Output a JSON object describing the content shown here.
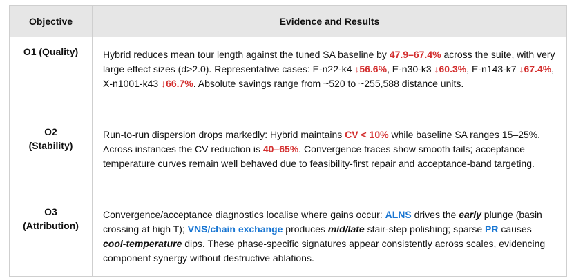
{
  "table": {
    "headers": {
      "objective": "Objective",
      "evidence": "Evidence and Results"
    },
    "rows": [
      {
        "objective": [
          "O1 (Quality)"
        ],
        "segments": [
          {
            "t": "Hybrid reduces mean tour length against the tuned SA baseline by ",
            "s": ""
          },
          {
            "t": "47.9–67.4%",
            "s": "red"
          },
          {
            "t": " across the suite, with very large effect sizes (d>2.0). Representative cases: E-n22-k4 ",
            "s": ""
          },
          {
            "t": "↓56.6%",
            "s": "red"
          },
          {
            "t": ", E-n30-k3 ",
            "s": ""
          },
          {
            "t": "↓60.3%",
            "s": "red"
          },
          {
            "t": ", E-n143-k7 ",
            "s": ""
          },
          {
            "t": "↓67.4%",
            "s": "red"
          },
          {
            "t": ", X-n1001-k43 ",
            "s": ""
          },
          {
            "t": "↓66.7%",
            "s": "red"
          },
          {
            "t": ". Absolute savings range from ~520 to ~255,588 distance units.",
            "s": ""
          }
        ]
      },
      {
        "objective": [
          "O2",
          "(Stability)"
        ],
        "segments": [
          {
            "t": "Run-to-run dispersion drops markedly: Hybrid maintains ",
            "s": ""
          },
          {
            "t": "CV < 10%",
            "s": "red"
          },
          {
            "t": " while baseline SA ranges 15–25%. Across instances the CV reduction is ",
            "s": ""
          },
          {
            "t": "40–65%",
            "s": "red"
          },
          {
            "t": ". Convergence traces show smooth tails; acceptance–temperature curves remain well behaved due to feasibility-first repair and acceptance-band targeting.",
            "s": ""
          }
        ]
      },
      {
        "objective": [
          "O3",
          "(Attribution)"
        ],
        "segments": [
          {
            "t": "Convergence/acceptance diagnostics localise where gains occur: ",
            "s": ""
          },
          {
            "t": "ALNS",
            "s": "blue"
          },
          {
            "t": " drives the ",
            "s": ""
          },
          {
            "t": "early",
            "s": "bi"
          },
          {
            "t": " plunge (basin crossing at high T); ",
            "s": ""
          },
          {
            "t": "VNS/chain exchange",
            "s": "blue"
          },
          {
            "t": " produces ",
            "s": ""
          },
          {
            "t": "mid/late",
            "s": "bi"
          },
          {
            "t": " stair-step polishing; sparse ",
            "s": ""
          },
          {
            "t": "PR",
            "s": "blue"
          },
          {
            "t": " causes ",
            "s": ""
          },
          {
            "t": "cool-temperature",
            "s": "bi"
          },
          {
            "t": " dips. These phase-specific signatures appear consistently across scales, evidencing component synergy without destructive ablations.",
            "s": ""
          }
        ]
      }
    ]
  }
}
